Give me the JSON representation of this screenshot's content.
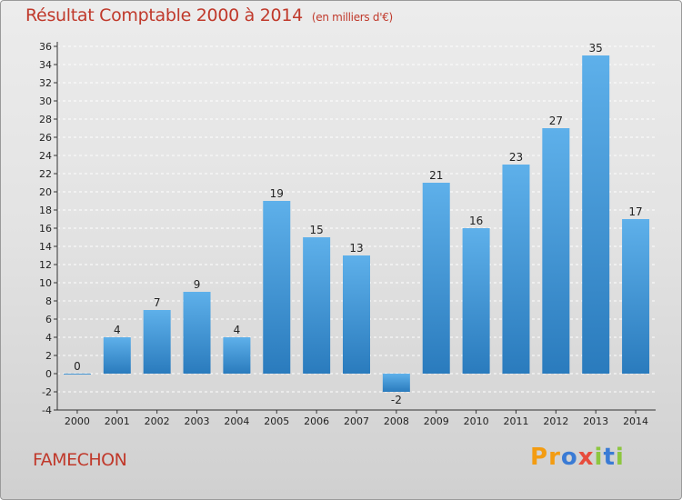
{
  "title": "Résultat Comptable 2000 à 2014",
  "unit": "(en milliers d'€)",
  "commune": "FAMECHON",
  "logo": {
    "text": "Proxiti",
    "colors": [
      "#f39c12",
      "#f39c12",
      "#3a7bd5",
      "#e74c3c",
      "#8dc63f",
      "#3a7bd5",
      "#8dc63f"
    ]
  },
  "colors": {
    "bar": "#3b8fd3",
    "bar_light": "#5eb0ea",
    "bar_dark": "#2a7bbd",
    "title": "#c0392b"
  },
  "chart_data": {
    "type": "bar",
    "categories": [
      "2000",
      "2001",
      "2002",
      "2003",
      "2004",
      "2005",
      "2006",
      "2007",
      "2008",
      "2009",
      "2010",
      "2011",
      "2012",
      "2013",
      "2014"
    ],
    "values": [
      0,
      4,
      7,
      9,
      4,
      19,
      15,
      13,
      -2,
      21,
      16,
      23,
      27,
      35,
      17
    ],
    "ylim": [
      -4,
      36
    ],
    "yticks": [
      -4,
      -2,
      0,
      2,
      4,
      6,
      8,
      10,
      12,
      14,
      16,
      18,
      20,
      22,
      24,
      26,
      28,
      30,
      32,
      34,
      36
    ],
    "grid": "horizontal dashed",
    "title": "Résultat Comptable 2000 à 2014",
    "xlabel": "",
    "ylabel": ""
  }
}
